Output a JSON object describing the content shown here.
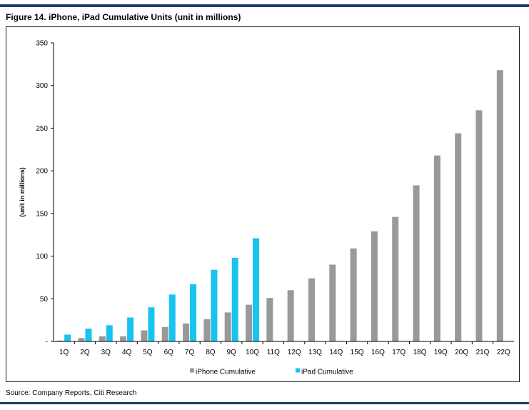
{
  "figure_title": "Figure 14. iPhone, iPad Cumulative Units (unit in millions)",
  "source": "Source: Company Reports, Citi Research",
  "colors": {
    "accent_rule": "#1f3a6e",
    "iphone": "#999999",
    "ipad": "#19c3f0"
  },
  "chart_data": {
    "type": "bar",
    "title": "iPhone, iPad Cumulative Units (unit in millions)",
    "xlabel": "",
    "ylabel": "(unit in millions)",
    "ylim": [
      0,
      350
    ],
    "yticks": [
      0,
      50,
      100,
      150,
      200,
      250,
      300,
      350
    ],
    "ytick_labels": [
      "-",
      "50",
      "100",
      "150",
      "200",
      "250",
      "300",
      "350"
    ],
    "grid": false,
    "legend_position": "bottom-center",
    "categories": [
      "1Q",
      "2Q",
      "3Q",
      "4Q",
      "5Q",
      "6Q",
      "7Q",
      "8Q",
      "9Q",
      "10Q",
      "11Q",
      "12Q",
      "13Q",
      "14Q",
      "15Q",
      "16Q",
      "17Q",
      "18Q",
      "19Q",
      "20Q",
      "21Q",
      "22Q"
    ],
    "series": [
      {
        "name": "iPhone Cumulative",
        "color": "#999999",
        "values": [
          1,
          4,
          6,
          6,
          13,
          17,
          21,
          26,
          34,
          43,
          51,
          60,
          74,
          90,
          109,
          129,
          146,
          183,
          218,
          244,
          271,
          318
        ]
      },
      {
        "name": "iPad Cumulative",
        "color": "#19c3f0",
        "values": [
          8,
          15,
          19,
          28,
          40,
          55,
          67,
          84,
          98,
          121,
          null,
          null,
          null,
          null,
          null,
          null,
          null,
          null,
          null,
          null,
          null,
          null
        ]
      }
    ]
  }
}
